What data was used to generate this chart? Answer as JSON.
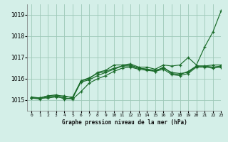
{
  "title": "Graphe pression niveau de la mer (hPa)",
  "background_color": "#d4efe8",
  "grid_color": "#9ec8b8",
  "line_color": "#1a6b2a",
  "xlim": [
    -0.5,
    23
  ],
  "ylim": [
    1014.5,
    1019.5
  ],
  "yticks": [
    1015,
    1016,
    1017,
    1018,
    1019
  ],
  "xtick_labels": [
    "0",
    "1",
    "2",
    "3",
    "4",
    "5",
    "6",
    "7",
    "8",
    "9",
    "10",
    "11",
    "12",
    "13",
    "14",
    "15",
    "16",
    "17",
    "18",
    "19",
    "20",
    "21",
    "22",
    "23"
  ],
  "series": [
    [
      1015.1,
      1015.1,
      1015.2,
      1015.2,
      1015.2,
      1015.1,
      1015.9,
      1016.0,
      1016.3,
      1016.4,
      1016.65,
      1016.65,
      1016.7,
      1016.55,
      1016.55,
      1016.45,
      1016.65,
      1016.6,
      1016.65,
      1017.0,
      1016.65,
      1017.5,
      1018.2,
      1019.2
    ],
    [
      1015.1,
      1015.05,
      1015.15,
      1015.2,
      1015.05,
      1015.1,
      1015.85,
      1015.95,
      1016.15,
      1016.3,
      1016.45,
      1016.6,
      1016.65,
      1016.5,
      1016.45,
      1016.35,
      1016.55,
      1016.25,
      1016.2,
      1016.35,
      1016.6,
      1016.6,
      1016.65,
      1016.65
    ],
    [
      1015.15,
      1015.1,
      1015.2,
      1015.25,
      1015.15,
      1015.15,
      1015.9,
      1016.05,
      1016.25,
      1016.35,
      1016.5,
      1016.6,
      1016.6,
      1016.5,
      1016.45,
      1016.4,
      1016.5,
      1016.3,
      1016.25,
      1016.3,
      1016.6,
      1016.6,
      1016.55,
      1016.6
    ],
    [
      1015.1,
      1015.1,
      1015.1,
      1015.15,
      1015.1,
      1015.05,
      1015.4,
      1015.8,
      1016.0,
      1016.15,
      1016.35,
      1016.5,
      1016.55,
      1016.45,
      1016.4,
      1016.35,
      1016.45,
      1016.2,
      1016.15,
      1016.25,
      1016.55,
      1016.55,
      1016.5,
      1016.55
    ]
  ]
}
